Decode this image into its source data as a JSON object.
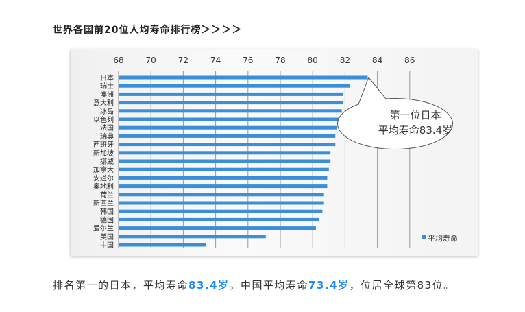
{
  "title": "世界各国前20位人均寿命排行榜＞＞＞＞",
  "caption": {
    "part1": "排名第一的日本，平均寿命",
    "japan_value": "83.4岁",
    "part2": "。中国平均寿命",
    "china_value": "73.4岁",
    "part3": "，位居全球第83位。"
  },
  "chart_data": {
    "type": "bar",
    "orientation": "horizontal",
    "categories": [
      "日本",
      "瑞士",
      "澳洲",
      "意大利",
      "冰岛",
      "以色列",
      "法国",
      "瑞典",
      "西班牙",
      "新加坡",
      "挪威",
      "加拿大",
      "安道尔",
      "奥地利",
      "荷兰",
      "新西兰",
      "韩国",
      "德国",
      "爱尔兰",
      "美国",
      "中国"
    ],
    "series": [
      {
        "name": "平均寿命",
        "values": [
          83.4,
          82.3,
          81.9,
          81.9,
          81.8,
          81.6,
          81.5,
          81.4,
          81.4,
          81.1,
          81.1,
          81.0,
          80.9,
          80.9,
          80.7,
          80.7,
          80.6,
          80.4,
          80.2,
          77.1,
          73.4
        ],
        "color": "#3a8fd8"
      }
    ],
    "xlim": [
      68,
      86
    ],
    "xticks": [
      "68",
      "70",
      "72",
      "74",
      "76",
      "78",
      "80",
      "82",
      "84",
      "86"
    ],
    "xaxis_position": "top",
    "grid": true,
    "legend": {
      "placement": "bottom-right",
      "label": "平均寿命"
    },
    "annotation": {
      "line1": "第一位日本",
      "line2": "平均寿命83.4岁",
      "target": "日本"
    }
  }
}
